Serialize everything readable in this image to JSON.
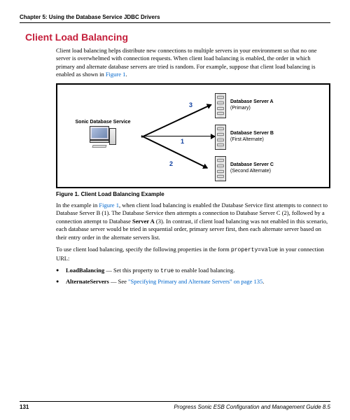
{
  "chapter": "Chapter 5: Using the Database Service JDBC Drivers",
  "section_title": "Client Load Balancing",
  "para1_a": "Client load balancing helps distribute new connections to multiple servers in your environment so that no one server is overwhelmed with connection requests. When client load balancing is enabled, the order in which primary and alternate database servers are tried is random. For example, suppose that client load balancing is enabled as shown in ",
  "para1_link": "Figure 1",
  "para1_b": ".",
  "diagram": {
    "client_label": "Sonic Database Service",
    "servers": [
      {
        "name": "Database Server A",
        "role": "(Primary)"
      },
      {
        "name": "Database Server B",
        "role": "(First Alternate)"
      },
      {
        "name": "Database Server C",
        "role": "(Second Alternate)"
      }
    ],
    "arrow_labels": {
      "one": "1",
      "two": "2",
      "three": "3"
    }
  },
  "figure_caption": "Figure 1. Client Load Balancing Example",
  "para2_a": "In the example in ",
  "para2_link": "Figure 1",
  "para2_b": ", when client load balancing is enabled the Database Service first attempts to connect to Database Server B (1). The Database Service then attempts a connection to Database Server C (2), followed by a connection attempt to Database ",
  "para2_bold": "Server A",
  "para2_c": " (3). In contrast, if client load balancing was not enabled in this scenario, each database server would be tried in sequential order, primary server first, then each alternate server based on their entry order in the alternate servers list.",
  "para3_a": "To use client load balancing, specify the following properties in the form ",
  "para3_mono": "property=value",
  "para3_b": " in your connection URL:",
  "bullets": {
    "b1_bold": "LoadBalancing",
    "b1_a": " — Set this property to ",
    "b1_mono": "true",
    "b1_b": " to enable load balancing.",
    "b2_bold": "AlternateServers",
    "b2_a": " — See ",
    "b2_link": "\"Specifying Primary and Alternate Servers\" on page 135",
    "b2_b": "."
  },
  "footer": {
    "page": "131",
    "title": "Progress Sonic ESB Configuration and Management Guide 8.5"
  },
  "colors": {
    "heading": "#c41e3a",
    "link": "#0066cc",
    "arrow_num": "#1040a0"
  }
}
